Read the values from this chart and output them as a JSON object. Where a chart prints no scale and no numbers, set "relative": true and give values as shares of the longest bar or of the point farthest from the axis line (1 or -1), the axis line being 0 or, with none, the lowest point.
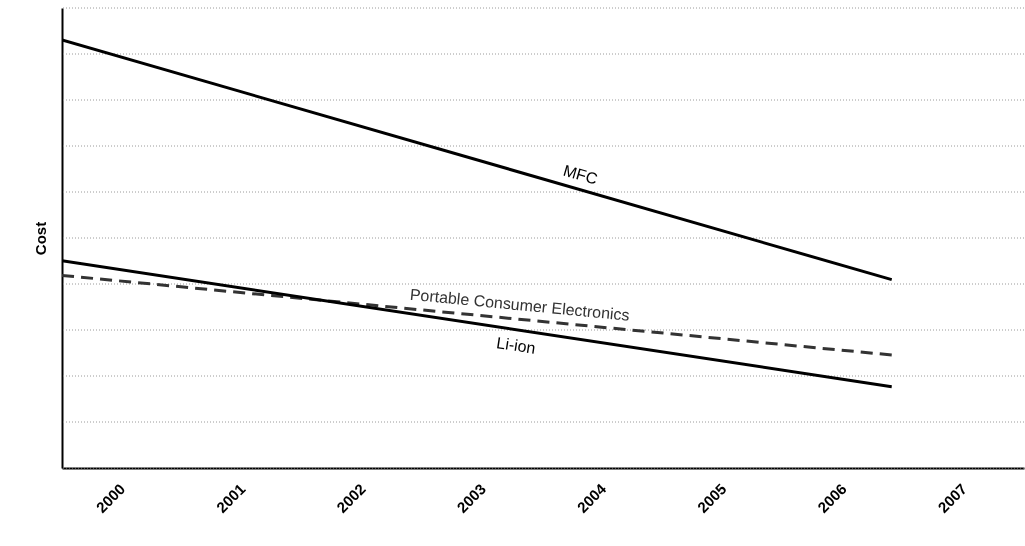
{
  "chart_data": {
    "type": "line",
    "ylabel": "Cost",
    "relative": true,
    "xlim": [
      1999.5,
      2007.5
    ],
    "xticks": [
      2000,
      2001,
      2002,
      2003,
      2004,
      2005,
      2006,
      2007
    ],
    "grid": "y",
    "line_style": "solid",
    "x": [
      1999.5,
      2006.4
    ],
    "series": [
      {
        "name": "MFC",
        "color": "#000000",
        "values": [
          1,
          0.44
        ]
      },
      {
        "name": "Portable Consumer Electronics",
        "color": "#333333",
        "values": [
          0.45,
          0.264
        ],
        "line_style": "dashed"
      },
      {
        "name": "Li-ion",
        "color": "#000000",
        "values": [
          0.484,
          0.19
        ]
      }
    ]
  }
}
